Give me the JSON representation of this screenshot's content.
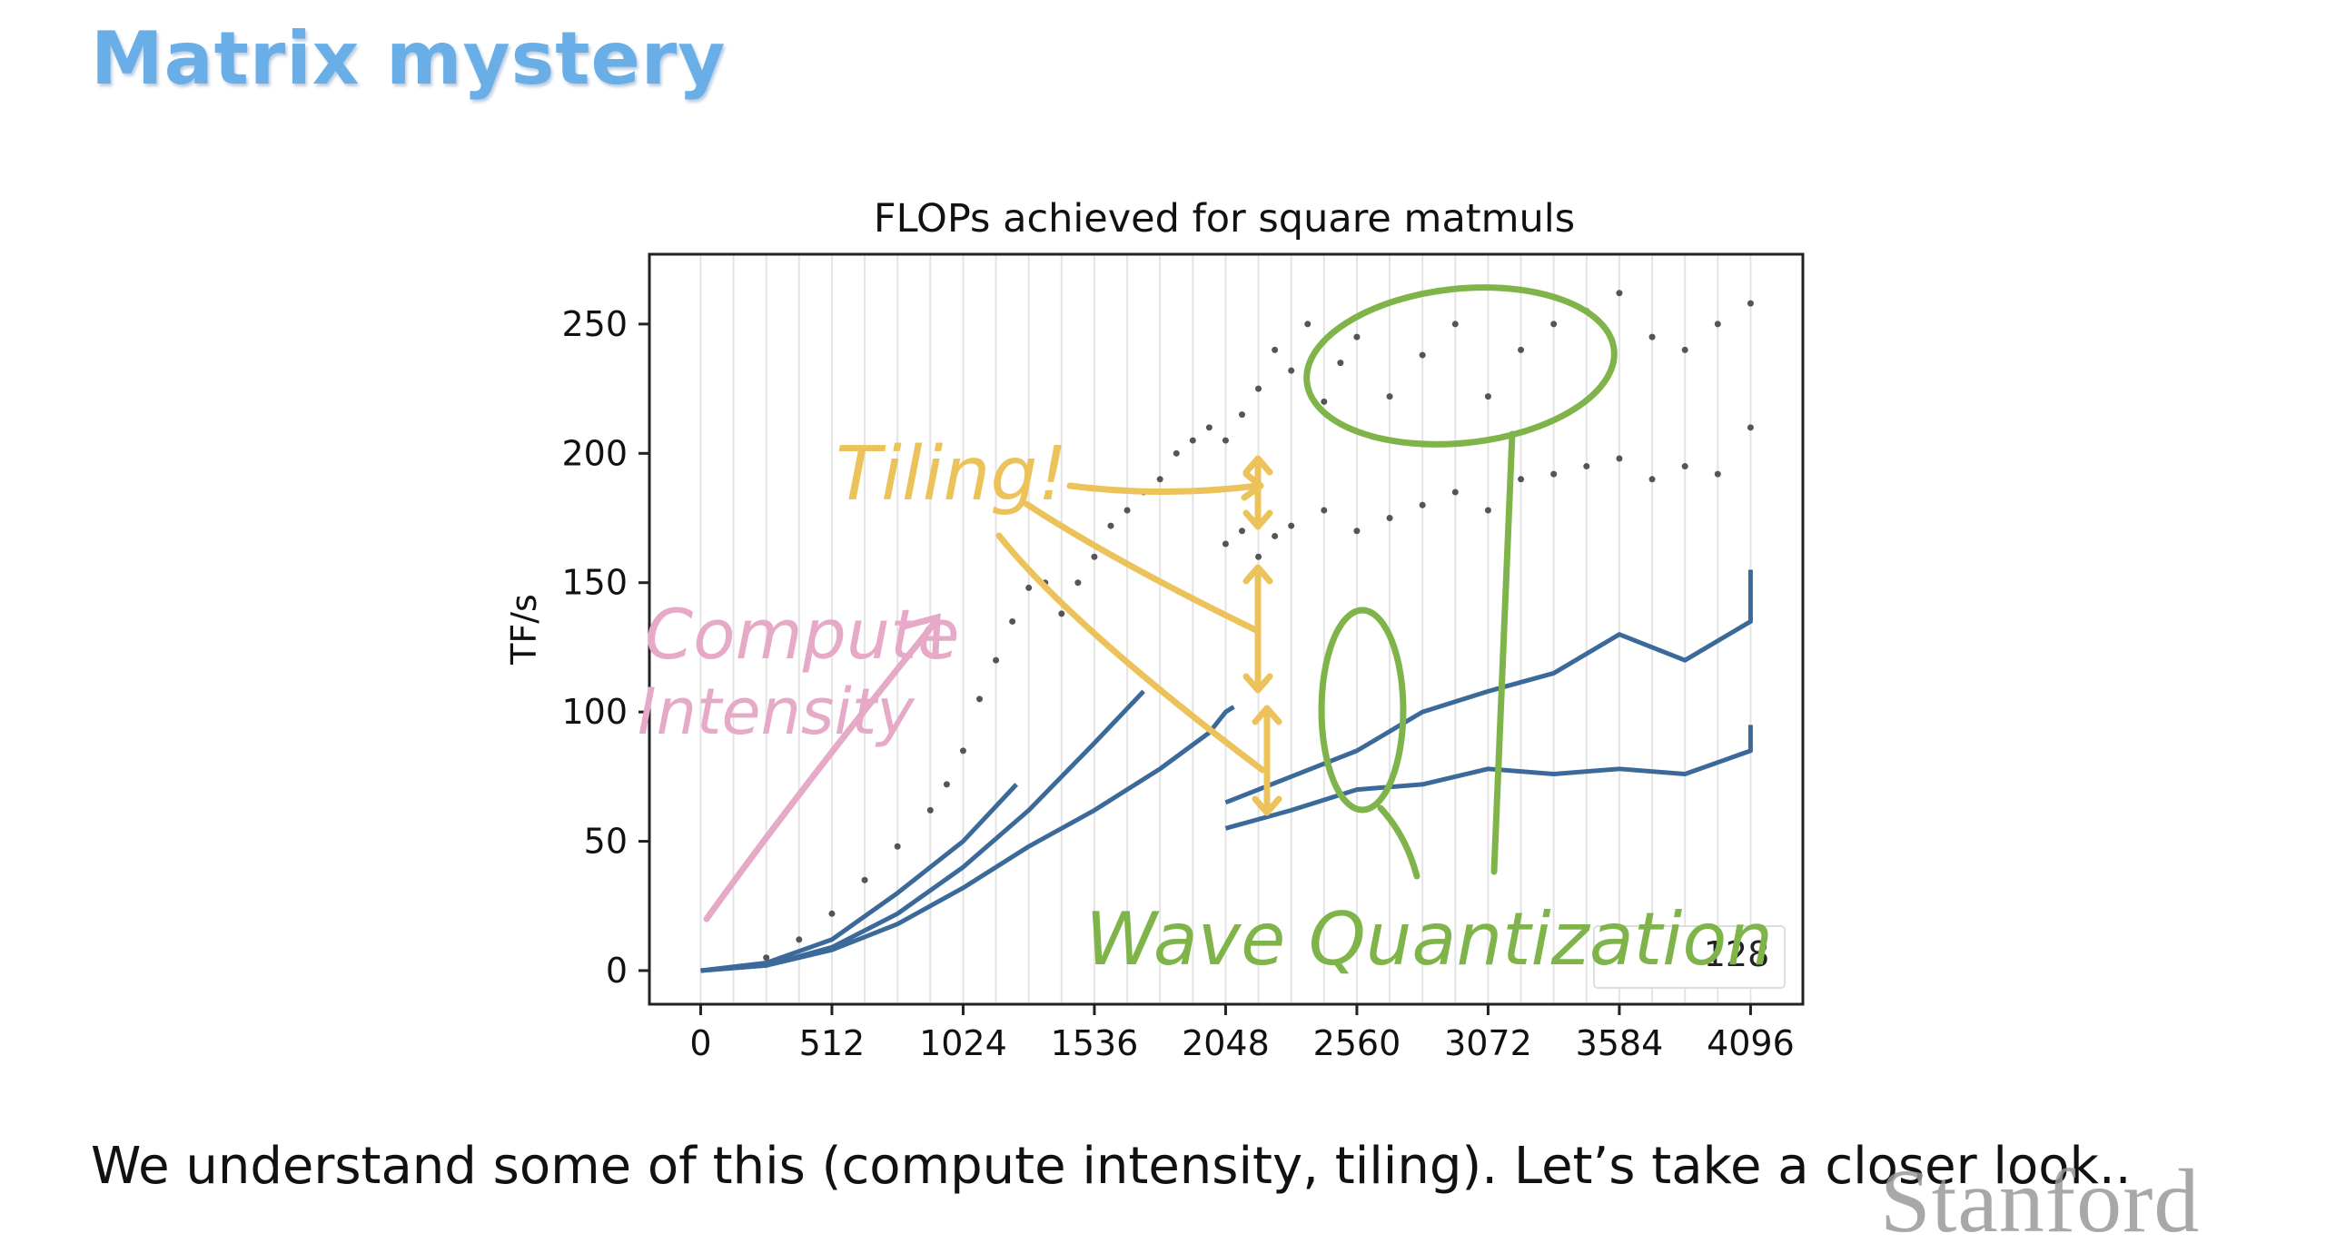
{
  "slide": {
    "title": "Matrix mystery",
    "caption": "We understand some of this (compute intensity, tiling). Let’s take a closer look..",
    "logo": "Stanford"
  },
  "chart_data": {
    "type": "scatter",
    "title": "FLOPs achieved for square matmuls",
    "xlabel": "",
    "ylabel": "TF/s",
    "xlim": [
      -200,
      4300
    ],
    "ylim": [
      -13,
      277
    ],
    "xticks": [
      0,
      512,
      1024,
      1536,
      2048,
      2560,
      3072,
      3584,
      4096
    ],
    "yticks": [
      0,
      50,
      100,
      150,
      200,
      250
    ],
    "grid": "vertical lines",
    "legend": {
      "placement": "lower-right",
      "entries": [
        "128"
      ]
    },
    "series": [
      {
        "name": "",
        "style": "gray dots",
        "color": "#555555",
        "points": [
          [
            256,
            5
          ],
          [
            384,
            12
          ],
          [
            512,
            22
          ],
          [
            640,
            35
          ],
          [
            768,
            48
          ],
          [
            896,
            62
          ],
          [
            960,
            72
          ],
          [
            1024,
            85
          ],
          [
            1088,
            105
          ],
          [
            1152,
            120
          ],
          [
            1216,
            135
          ],
          [
            1280,
            148
          ],
          [
            1344,
            150
          ],
          [
            1408,
            138
          ],
          [
            1472,
            150
          ],
          [
            1536,
            160
          ],
          [
            1600,
            172
          ],
          [
            1664,
            178
          ],
          [
            1728,
            185
          ],
          [
            1792,
            190
          ],
          [
            1856,
            200
          ],
          [
            1920,
            205
          ],
          [
            1984,
            210
          ],
          [
            2048,
            205
          ],
          [
            2112,
            215
          ],
          [
            2176,
            225
          ],
          [
            2240,
            240
          ],
          [
            2304,
            232
          ],
          [
            2368,
            250
          ],
          [
            2432,
            220
          ],
          [
            2496,
            235
          ],
          [
            2560,
            245
          ],
          [
            2688,
            222
          ],
          [
            2816,
            238
          ],
          [
            2944,
            250
          ],
          [
            3072,
            222
          ],
          [
            3200,
            240
          ],
          [
            3328,
            250
          ],
          [
            3456,
            255
          ],
          [
            3584,
            262
          ],
          [
            3712,
            245
          ],
          [
            3840,
            240
          ],
          [
            3968,
            250
          ],
          [
            4096,
            258
          ],
          [
            4096,
            210
          ],
          [
            2048,
            165
          ],
          [
            2112,
            170
          ],
          [
            2176,
            160
          ],
          [
            2240,
            168
          ],
          [
            2304,
            172
          ],
          [
            2432,
            178
          ],
          [
            2560,
            170
          ],
          [
            2688,
            175
          ],
          [
            2816,
            180
          ],
          [
            2944,
            185
          ],
          [
            3072,
            178
          ],
          [
            3200,
            190
          ],
          [
            3328,
            192
          ],
          [
            3456,
            195
          ],
          [
            3584,
            198
          ],
          [
            3712,
            190
          ],
          [
            3840,
            195
          ],
          [
            3968,
            192
          ]
        ]
      },
      {
        "name": "128",
        "style": "blue lines",
        "color": "#3b6a9a",
        "segments": [
          [
            [
              0,
              0
            ],
            [
              256,
              3
            ],
            [
              512,
              12
            ],
            [
              768,
              30
            ],
            [
              1024,
              50
            ],
            [
              1232,
              72
            ]
          ],
          [
            [
              0,
              0
            ],
            [
              256,
              2
            ],
            [
              512,
              9
            ],
            [
              768,
              22
            ],
            [
              1024,
              40
            ],
            [
              1280,
              62
            ],
            [
              1536,
              88
            ],
            [
              1728,
              108
            ]
          ],
          [
            [
              0,
              0
            ],
            [
              256,
              2
            ],
            [
              512,
              8
            ],
            [
              768,
              18
            ],
            [
              1024,
              32
            ],
            [
              1280,
              48
            ],
            [
              1536,
              62
            ],
            [
              1792,
              78
            ],
            [
              1984,
              92
            ],
            [
              2048,
              100
            ],
            [
              2080,
              102
            ]
          ],
          [
            [
              2048,
              65
            ],
            [
              2304,
              75
            ],
            [
              2560,
              85
            ],
            [
              2816,
              100
            ],
            [
              3072,
              108
            ],
            [
              3328,
              115
            ],
            [
              3584,
              130
            ],
            [
              3840,
              120
            ],
            [
              4096,
              135
            ],
            [
              4096,
              155
            ]
          ],
          [
            [
              2048,
              55
            ],
            [
              2304,
              62
            ],
            [
              2560,
              70
            ],
            [
              2816,
              72
            ],
            [
              3072,
              78
            ],
            [
              3328,
              76
            ],
            [
              3584,
              78
            ],
            [
              3840,
              76
            ],
            [
              4096,
              85
            ],
            [
              4096,
              95
            ]
          ]
        ]
      }
    ],
    "annotations": [
      {
        "text": "Tiling!",
        "color": "#ecc35a"
      },
      {
        "text": "Compute",
        "color": "#e6a9c8"
      },
      {
        "text": "Intensity",
        "color": "#e6a9c8"
      },
      {
        "text": "Wave Quantization",
        "color": "#7fb44a"
      }
    ]
  }
}
